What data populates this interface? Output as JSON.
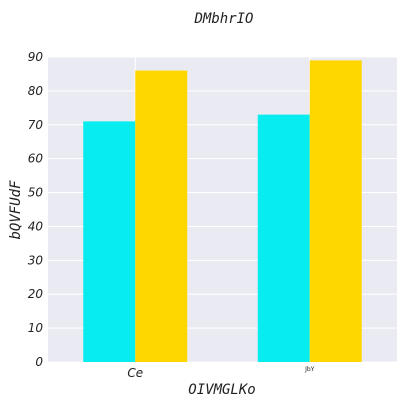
{
  "chart_data": {
    "type": "bar",
    "title": "DMbhrIO",
    "xlabel": "OIVMGLKo",
    "ylabel": "bQVFUdF",
    "categories": [
      "Ce",
      "JbY"
    ],
    "series": [
      {
        "values": [
          71,
          73
        ],
        "color": "#06ECEF"
      },
      {
        "values": [
          86,
          89
        ],
        "color": "#FFD700"
      }
    ],
    "ylim": [
      0,
      90
    ],
    "yticks": [
      0,
      10,
      20,
      30,
      40,
      50,
      60,
      70,
      80,
      90
    ],
    "grid": true,
    "plot_background": "#EAEAF2",
    "grid_color": "#ffffff"
  }
}
